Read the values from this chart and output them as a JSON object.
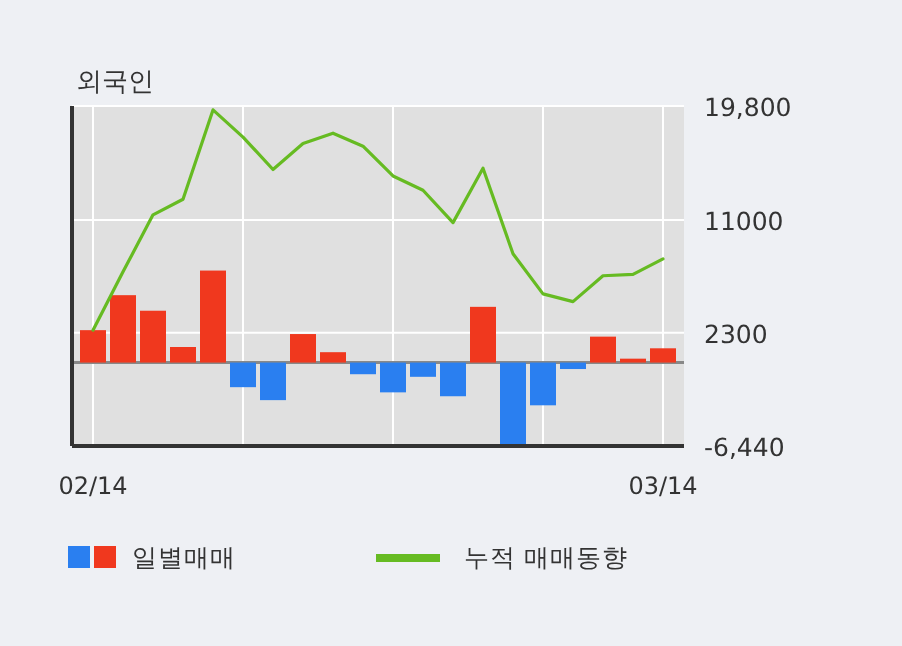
{
  "chart_data": {
    "type": "bar",
    "title": "외국인",
    "categories": [
      "02/14",
      null,
      null,
      null,
      null,
      null,
      null,
      null,
      null,
      null,
      null,
      null,
      null,
      null,
      null,
      null,
      null,
      null,
      null,
      "03/14"
    ],
    "series": [
      {
        "name": "일별매매",
        "colors": [
          "#f0381e",
          "#f0381e",
          "#f0381e",
          "#f0381e",
          "#f0381e",
          "#2a7ff0",
          "#2a7ff0",
          "#f0381e",
          "#f0381e",
          "#2a7ff0",
          "#2a7ff0",
          "#2a7ff0",
          "#2a7ff0",
          "#f0381e",
          "#2a7ff0",
          "#2a7ff0",
          "#2a7ff0",
          "#f0381e",
          "#f0381e",
          "#f0381e"
        ],
        "values": [
          2500,
          5200,
          4000,
          1200,
          7100,
          -1900,
          -2900,
          2200,
          800,
          -900,
          -2300,
          -1100,
          -2600,
          4300,
          -6300,
          -3300,
          -500,
          2000,
          300,
          1100
        ]
      },
      {
        "name": "누적 매매동향",
        "type": "line",
        "color": "#66bb22",
        "values": [
          2500,
          7000,
          11400,
          12600,
          19500,
          17400,
          14900,
          16900,
          17700,
          16700,
          14400,
          13300,
          10800,
          15000,
          8400,
          5300,
          4700,
          6700,
          6800,
          8000
        ]
      }
    ],
    "ylim": [
      -6440,
      19800
    ],
    "yticks": [
      {
        "value": 19800,
        "label": "19,800"
      },
      11000,
      2300,
      {
        "value": -6440,
        "label": "-6,440"
      }
    ],
    "ref_lines": [
      {
        "axis": "y",
        "value": 0,
        "color": "#888888"
      }
    ],
    "grid": true,
    "legend": "bottom"
  }
}
